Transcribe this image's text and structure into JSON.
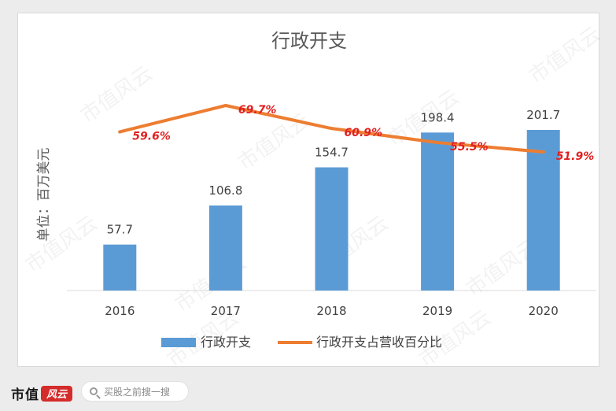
{
  "chart_data": {
    "type": "bar",
    "title": "行政开支",
    "ylabel": "单位：百万美元",
    "categories": [
      "2016",
      "2017",
      "2018",
      "2019",
      "2020"
    ],
    "ylim": [
      0,
      220
    ],
    "series": [
      {
        "name": "行政开支",
        "type": "bar",
        "values": [
          57.7,
          106.8,
          154.7,
          198.4,
          201.7
        ],
        "labels": [
          "57.7",
          "106.8",
          "154.7",
          "198.4",
          "201.7"
        ],
        "color": "#5b9bd5"
      },
      {
        "name": "行政开支占营收百分比",
        "type": "line",
        "values": [
          59.6,
          69.7,
          60.9,
          55.5,
          51.9
        ],
        "labels": [
          "59.6%",
          "69.7%",
          "60.9%",
          "55.5%",
          "51.9%"
        ],
        "color": "#ed7d31",
        "label_color": "#e02020"
      }
    ],
    "grid": false,
    "legend_position": "bottom"
  },
  "watermark": "市值风云",
  "footer": {
    "logo_text": "市值",
    "logo_mark": "风云",
    "search_placeholder": "买股之前搜一搜"
  }
}
